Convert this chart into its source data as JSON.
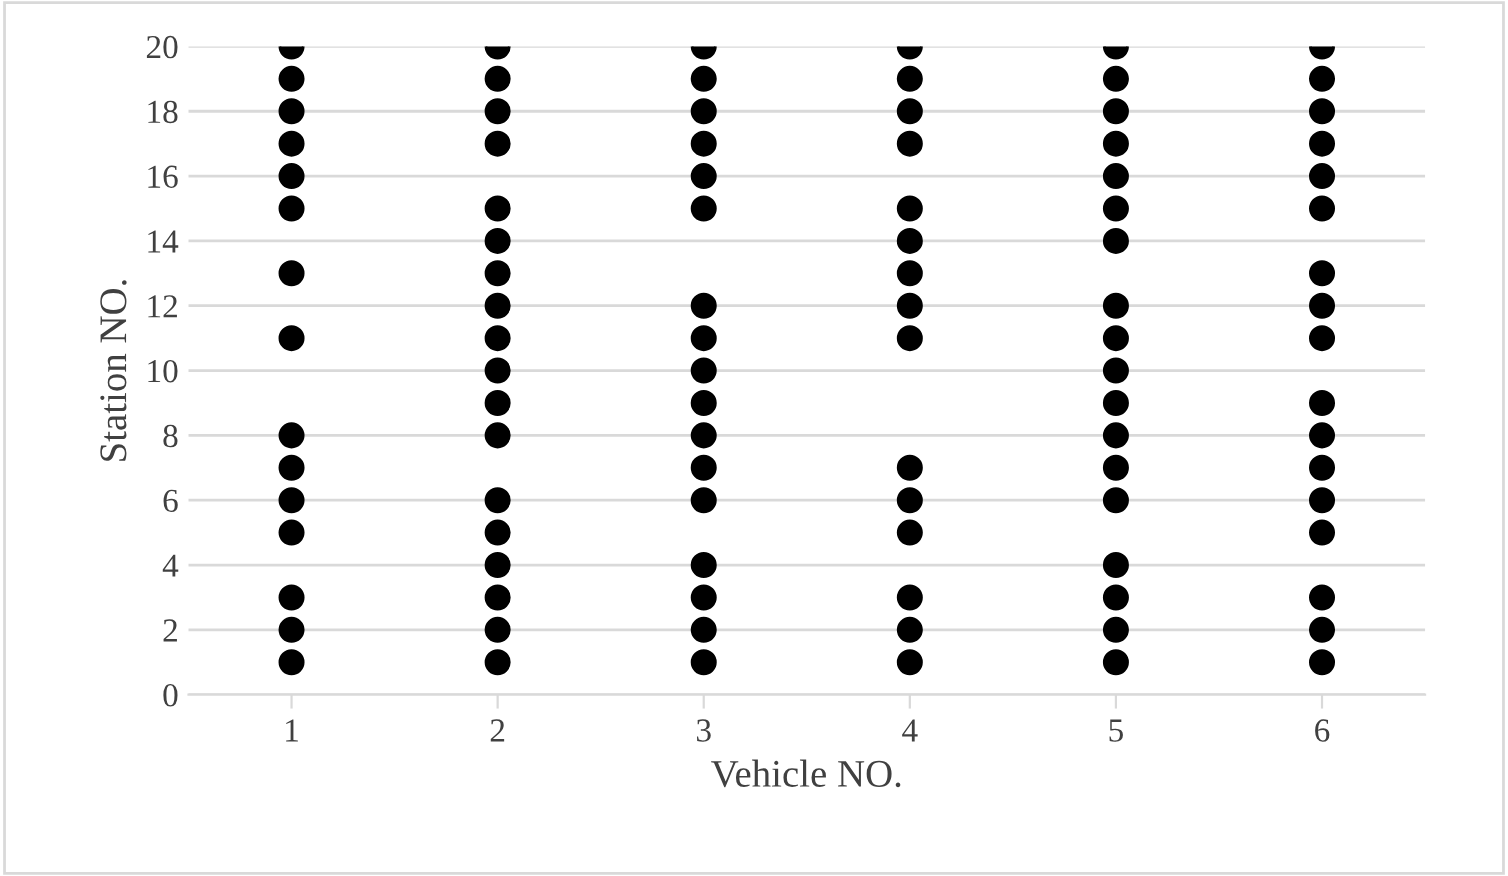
{
  "chart_data": {
    "type": "scatter",
    "xlabel": "Vehicle NO.",
    "ylabel": "Station NO.",
    "categories": [
      "1",
      "2",
      "3",
      "4",
      "5",
      "6"
    ],
    "series": [
      {
        "color": "#000000",
        "x": [
          "1",
          "1",
          "1",
          "1",
          "1",
          "1",
          "1",
          "1",
          "1",
          "1",
          "1",
          "1",
          "1",
          "1",
          "1"
        ],
        "values": [
          20,
          19,
          18,
          17,
          16,
          15,
          13,
          11,
          8,
          7,
          6,
          5,
          3,
          2,
          1
        ]
      },
      {
        "color": "#000000",
        "x": [
          "2",
          "2",
          "2",
          "2",
          "2",
          "2",
          "2",
          "2",
          "2",
          "2",
          "2",
          "2",
          "2",
          "2",
          "2",
          "2",
          "2",
          "2"
        ],
        "values": [
          20,
          19,
          18,
          17,
          15,
          14,
          13,
          12,
          11,
          10,
          9,
          8,
          6,
          5,
          4,
          3,
          2,
          1
        ]
      },
      {
        "color": "#000000",
        "x": [
          "3",
          "3",
          "3",
          "3",
          "3",
          "3",
          "3",
          "3",
          "3",
          "3",
          "3",
          "3",
          "3",
          "3",
          "3",
          "3",
          "3"
        ],
        "values": [
          20,
          19,
          18,
          17,
          16,
          15,
          12,
          11,
          10,
          9,
          8,
          7,
          6,
          4,
          3,
          2,
          1
        ]
      },
      {
        "color": "#000000",
        "x": [
          "4",
          "4",
          "4",
          "4",
          "4",
          "4",
          "4",
          "4",
          "4",
          "4",
          "4",
          "4",
          "4",
          "4",
          "4"
        ],
        "values": [
          20,
          19,
          18,
          17,
          15,
          14,
          13,
          12,
          11,
          7,
          6,
          5,
          3,
          2,
          1
        ]
      },
      {
        "color": "#000000",
        "x": [
          "5",
          "5",
          "5",
          "5",
          "5",
          "5",
          "5",
          "5",
          "5",
          "5",
          "5",
          "5",
          "5",
          "5",
          "5",
          "5",
          "5",
          "5"
        ],
        "values": [
          20,
          19,
          18,
          17,
          16,
          15,
          14,
          12,
          11,
          10,
          9,
          8,
          7,
          6,
          4,
          3,
          2,
          1
        ]
      },
      {
        "color": "#000000",
        "x": [
          "6",
          "6",
          "6",
          "6",
          "6",
          "6",
          "6",
          "6",
          "6",
          "6",
          "6",
          "6",
          "6",
          "6",
          "6",
          "6",
          "6"
        ],
        "values": [
          20,
          19,
          18,
          17,
          16,
          15,
          13,
          12,
          11,
          9,
          8,
          7,
          6,
          5,
          3,
          2,
          1
        ]
      }
    ],
    "ylim": [
      0,
      20
    ],
    "yticks": [
      0,
      2,
      4,
      6,
      8,
      10,
      12,
      14,
      16,
      18,
      20
    ],
    "grid": "y",
    "marker": "circle",
    "legend": false
  }
}
